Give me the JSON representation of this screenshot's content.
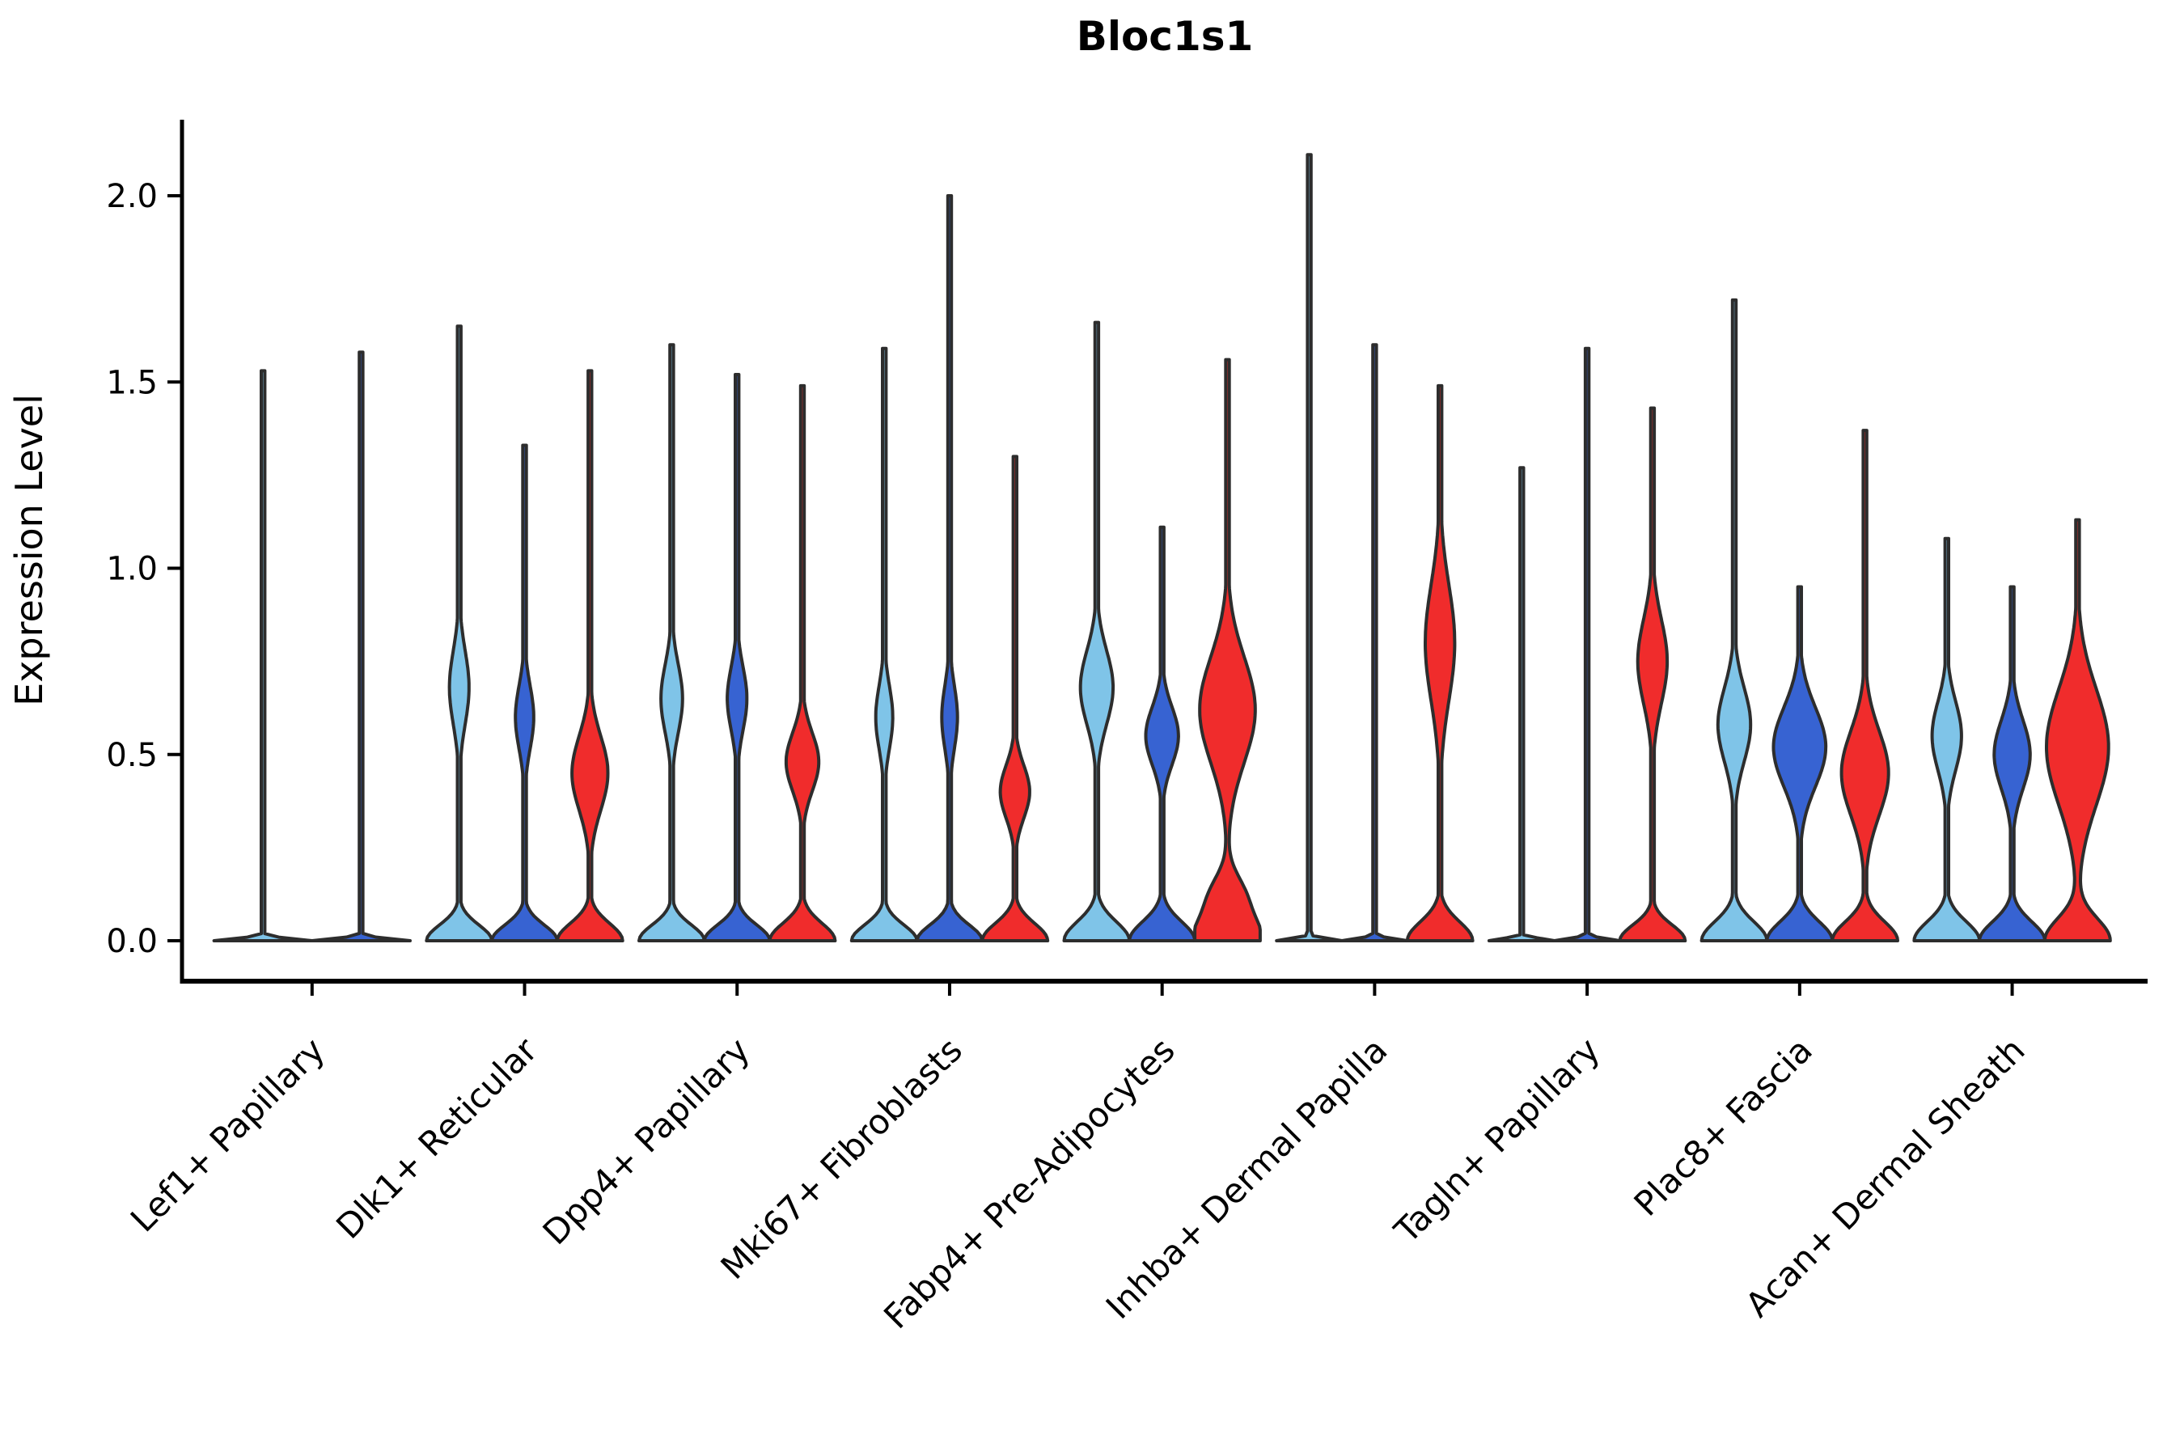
{
  "chart_data": {
    "type": "violin",
    "title": "Bloc1s1",
    "ylabel": "Expression Level",
    "xlabel": "",
    "yticks": {
      "values": [
        0.0,
        0.5,
        1.0,
        1.5,
        2.0
      ],
      "labels": [
        "0.0",
        "0.5",
        "1.0",
        "1.5",
        "2.0"
      ]
    },
    "ylim": [
      -0.1,
      2.25
    ],
    "grid": false,
    "legend": "none",
    "categories": [
      "Lef1+ Papillary",
      "Dlk1+ Reticular",
      "Dpp4+ Papillary",
      "Mki67+ Fibroblasts",
      "Fabp4+ Pre-Adipocytes",
      "Inhba+ Dermal Papilla",
      "Tagln+ Papillary",
      "Plac8+ Fascia",
      "Acan+ Dermal Sheath"
    ],
    "colors": {
      "light_blue": "#7FC4E8",
      "blue": "#3763D2",
      "red": "#F02C2C",
      "edge": "#2D2D2D",
      "text": "#000000"
    },
    "groups": [
      {
        "category": "Lef1+ Papillary",
        "violins": [
          {
            "hue": "light_blue",
            "max": 1.53,
            "base": 0.015,
            "bulges": []
          },
          {
            "hue": "blue",
            "max": 1.58,
            "base": 0.015,
            "bulges": []
          }
        ]
      },
      {
        "category": "Dlk1+ Reticular",
        "violins": [
          {
            "hue": "light_blue",
            "max": 1.65,
            "base": 0.1,
            "bulges": [
              [
                0.68,
                0.14,
                0.3
              ]
            ]
          },
          {
            "hue": "blue",
            "max": 1.33,
            "base": 0.1,
            "bulges": [
              [
                0.6,
                0.12,
                0.28
              ]
            ]
          },
          {
            "hue": "red",
            "max": 1.53,
            "base": 0.11,
            "bulges": [
              [
                0.45,
                0.14,
                0.55
              ]
            ]
          }
        ]
      },
      {
        "category": "Dpp4+ Papillary",
        "violins": [
          {
            "hue": "light_blue",
            "max": 1.6,
            "base": 0.1,
            "bulges": [
              [
                0.65,
                0.13,
                0.33
              ]
            ]
          },
          {
            "hue": "blue",
            "max": 1.52,
            "base": 0.1,
            "bulges": [
              [
                0.65,
                0.12,
                0.3
              ]
            ]
          },
          {
            "hue": "red",
            "max": 1.49,
            "base": 0.11,
            "bulges": [
              [
                0.48,
                0.11,
                0.5
              ]
            ]
          }
        ]
      },
      {
        "category": "Mki67+ Fibroblasts",
        "violins": [
          {
            "hue": "light_blue",
            "max": 1.59,
            "base": 0.1,
            "bulges": [
              [
                0.6,
                0.12,
                0.26
              ]
            ]
          },
          {
            "hue": "blue",
            "max": 2.0,
            "base": 0.1,
            "bulges": [
              [
                0.6,
                0.12,
                0.24
              ]
            ]
          },
          {
            "hue": "red",
            "max": 1.3,
            "base": 0.11,
            "bulges": [
              [
                0.4,
                0.1,
                0.45
              ]
            ]
          }
        ]
      },
      {
        "category": "Fabp4+ Pre-Adipocytes",
        "violins": [
          {
            "hue": "light_blue",
            "max": 1.66,
            "base": 0.12,
            "bulges": [
              [
                0.68,
                0.14,
                0.5
              ]
            ]
          },
          {
            "hue": "blue",
            "max": 1.11,
            "base": 0.12,
            "bulges": [
              [
                0.55,
                0.11,
                0.5
              ]
            ]
          },
          {
            "hue": "red",
            "max": 1.56,
            "base": 0.14,
            "bulges": [
              [
                0.62,
                0.2,
                0.85
              ],
              [
                0.12,
                0.08,
                0.5
              ]
            ]
          }
        ]
      },
      {
        "category": "Inhba+ Dermal Papilla",
        "violins": [
          {
            "hue": "light_blue",
            "max": 2.11,
            "base": 0.015,
            "bulges": []
          },
          {
            "hue": "blue",
            "max": 1.6,
            "base": 0.015,
            "bulges": []
          },
          {
            "hue": "red",
            "max": 1.49,
            "base": 0.12,
            "bulges": [
              [
                0.8,
                0.22,
                0.45
              ]
            ]
          }
        ]
      },
      {
        "category": "Tagln+ Papillary",
        "violins": [
          {
            "hue": "light_blue",
            "max": 1.27,
            "base": 0.015,
            "bulges": []
          },
          {
            "hue": "blue",
            "max": 1.59,
            "base": 0.015,
            "bulges": []
          },
          {
            "hue": "red",
            "max": 1.43,
            "base": 0.1,
            "bulges": [
              [
                0.75,
                0.16,
                0.45
              ]
            ]
          }
        ]
      },
      {
        "category": "Plac8+ Fascia",
        "violins": [
          {
            "hue": "light_blue",
            "max": 1.72,
            "base": 0.12,
            "bulges": [
              [
                0.58,
                0.14,
                0.5
              ]
            ]
          },
          {
            "hue": "blue",
            "max": 0.95,
            "base": 0.12,
            "bulges": [
              [
                0.52,
                0.15,
                0.8
              ]
            ]
          },
          {
            "hue": "red",
            "max": 1.37,
            "base": 0.12,
            "bulges": [
              [
                0.45,
                0.16,
                0.72
              ]
            ]
          }
        ]
      },
      {
        "category": "Acan+ Dermal Sheath",
        "violins": [
          {
            "hue": "light_blue",
            "max": 1.08,
            "base": 0.12,
            "bulges": [
              [
                0.55,
                0.13,
                0.45
              ]
            ]
          },
          {
            "hue": "blue",
            "max": 0.95,
            "base": 0.12,
            "bulges": [
              [
                0.5,
                0.13,
                0.55
              ]
            ]
          },
          {
            "hue": "red",
            "max": 1.13,
            "base": 0.14,
            "bulges": [
              [
                0.52,
                0.22,
                0.95
              ]
            ]
          }
        ]
      }
    ]
  }
}
